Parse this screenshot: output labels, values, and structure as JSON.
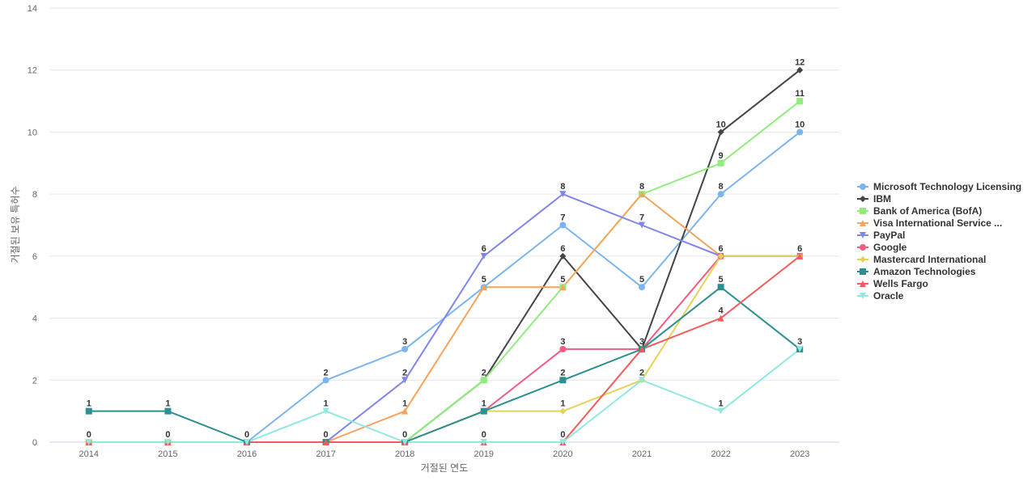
{
  "chart_data": {
    "type": "line",
    "xlabel": "거절된 연도",
    "ylabel": "거절된 보유 특허수",
    "x": [
      "2014",
      "2015",
      "2016",
      "2017",
      "2018",
      "2019",
      "2020",
      "2021",
      "2022",
      "2023"
    ],
    "ylim": [
      0,
      14
    ],
    "yticks": [
      0,
      2,
      4,
      6,
      8,
      10,
      12,
      14
    ],
    "grid": true,
    "legend_position": "right",
    "series": [
      {
        "name": "Microsoft Technology Licensing",
        "color": "#7cb5ec",
        "marker": "circle",
        "values": [
          0,
          0,
          0,
          2,
          3,
          5,
          7,
          5,
          8,
          10
        ]
      },
      {
        "name": "IBM",
        "color": "#434348",
        "marker": "diamond",
        "values": [
          0,
          0,
          0,
          0,
          0,
          2,
          6,
          3,
          10,
          12
        ]
      },
      {
        "name": "Bank of America (BofA)",
        "color": "#90ed7d",
        "marker": "square",
        "values": [
          0,
          0,
          0,
          0,
          0,
          2,
          5,
          8,
          9,
          11
        ]
      },
      {
        "name": "Visa International Service ...",
        "color": "#f7a35c",
        "marker": "triangle",
        "values": [
          0,
          0,
          0,
          0,
          1,
          5,
          5,
          8,
          6,
          6
        ]
      },
      {
        "name": "PayPal",
        "color": "#8085e9",
        "marker": "triangle-down",
        "values": [
          0,
          0,
          0,
          0,
          2,
          6,
          8,
          7,
          6,
          6
        ]
      },
      {
        "name": "Google",
        "color": "#f15c80",
        "marker": "circle",
        "values": [
          0,
          0,
          0,
          0,
          0,
          1,
          3,
          3,
          6,
          6
        ]
      },
      {
        "name": "Mastercard International",
        "color": "#e4d354",
        "marker": "diamond",
        "values": [
          0,
          0,
          0,
          0,
          0,
          1,
          1,
          2,
          6,
          6
        ]
      },
      {
        "name": "Amazon Technologies",
        "color": "#2b908f",
        "marker": "square",
        "values": [
          1,
          1,
          0,
          0,
          0,
          1,
          2,
          3,
          5,
          3
        ]
      },
      {
        "name": "Wells Fargo",
        "color": "#f45b5b",
        "marker": "triangle",
        "values": [
          0,
          0,
          0,
          0,
          0,
          0,
          0,
          3,
          4,
          6
        ]
      },
      {
        "name": "Oracle",
        "color": "#91e8e1",
        "marker": "triangle-down",
        "values": [
          0,
          0,
          0,
          1,
          0,
          0,
          0,
          2,
          1,
          3
        ]
      }
    ],
    "data_labels": [
      {
        "x": "2014",
        "y": 1,
        "text": "1"
      },
      {
        "x": "2014",
        "y": 0,
        "text": "0"
      },
      {
        "x": "2015",
        "y": 1,
        "text": "1"
      },
      {
        "x": "2015",
        "y": 0,
        "text": "0"
      },
      {
        "x": "2016",
        "y": 0,
        "text": "0"
      },
      {
        "x": "2017",
        "y": 2,
        "text": "2"
      },
      {
        "x": "2017",
        "y": 1,
        "text": "1"
      },
      {
        "x": "2017",
        "y": 0,
        "text": "0"
      },
      {
        "x": "2018",
        "y": 3,
        "text": "3"
      },
      {
        "x": "2018",
        "y": 2,
        "text": "2"
      },
      {
        "x": "2018",
        "y": 1,
        "text": "1"
      },
      {
        "x": "2018",
        "y": 0,
        "text": "0"
      },
      {
        "x": "2019",
        "y": 6,
        "text": "6"
      },
      {
        "x": "2019",
        "y": 5,
        "text": "5"
      },
      {
        "x": "2019",
        "y": 2,
        "text": "2"
      },
      {
        "x": "2019",
        "y": 1,
        "text": "1"
      },
      {
        "x": "2019",
        "y": 0,
        "text": "0"
      },
      {
        "x": "2020",
        "y": 8,
        "text": "8"
      },
      {
        "x": "2020",
        "y": 7,
        "text": "7"
      },
      {
        "x": "2020",
        "y": 6,
        "text": "6"
      },
      {
        "x": "2020",
        "y": 5,
        "text": "5"
      },
      {
        "x": "2020",
        "y": 3,
        "text": "3"
      },
      {
        "x": "2020",
        "y": 2,
        "text": "2"
      },
      {
        "x": "2020",
        "y": 1,
        "text": "1"
      },
      {
        "x": "2020",
        "y": 0,
        "text": "0"
      },
      {
        "x": "2021",
        "y": 8,
        "text": "8"
      },
      {
        "x": "2021",
        "y": 7,
        "text": "7"
      },
      {
        "x": "2021",
        "y": 5,
        "text": "5"
      },
      {
        "x": "2021",
        "y": 3,
        "text": "3"
      },
      {
        "x": "2021",
        "y": 2,
        "text": "2"
      },
      {
        "x": "2022",
        "y": 10,
        "text": "10"
      },
      {
        "x": "2022",
        "y": 9,
        "text": "9"
      },
      {
        "x": "2022",
        "y": 8,
        "text": "8"
      },
      {
        "x": "2022",
        "y": 6,
        "text": "6"
      },
      {
        "x": "2022",
        "y": 5,
        "text": "5"
      },
      {
        "x": "2022",
        "y": 4,
        "text": "4"
      },
      {
        "x": "2022",
        "y": 1,
        "text": "1"
      },
      {
        "x": "2023",
        "y": 12,
        "text": "12"
      },
      {
        "x": "2023",
        "y": 11,
        "text": "11"
      },
      {
        "x": "2023",
        "y": 10,
        "text": "10"
      },
      {
        "x": "2023",
        "y": 6,
        "text": "6"
      },
      {
        "x": "2023",
        "y": 3,
        "text": "3"
      }
    ]
  }
}
